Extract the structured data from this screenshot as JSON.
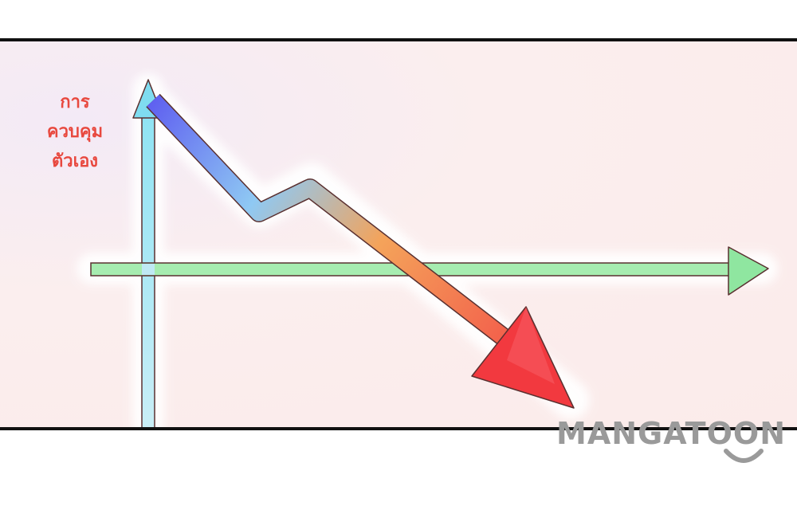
{
  "panel": {
    "label_lines": [
      "การ",
      "ควบคุม",
      "ตัวเอง"
    ]
  },
  "watermark": {
    "text": "MANGATOON"
  },
  "colors": {
    "vertical_arrow": "#bfe9f4",
    "horizontal_arrow": "#9eeaa9",
    "trend_start": "#6a6ef0",
    "trend_mid": "#8fc9f3",
    "trend_orange": "#f4a35a",
    "trend_end": "#f23a43",
    "label": "#e8483e",
    "watermark": "#9a9a9a"
  },
  "icons": {
    "trend": "downward-trend-arrow",
    "axes": "axis-arrows"
  }
}
